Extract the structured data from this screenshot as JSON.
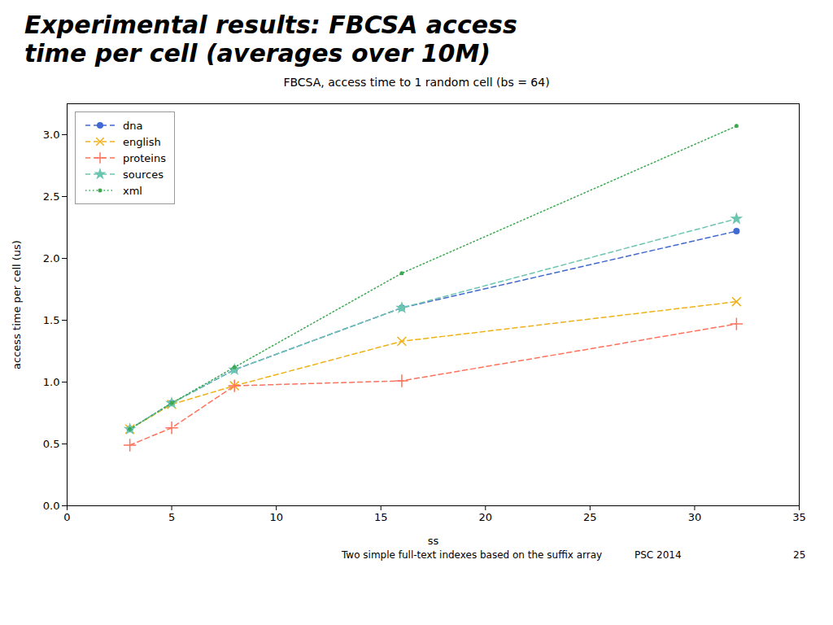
{
  "chart_data": {
    "type": "line",
    "title": "Experimental results: FBCSA access\ntime per cell (averages over 10M)",
    "subtitle": "FBCSA, access time to 1 random cell (bs = 64)",
    "x_label": "ss",
    "y_label": "access time per cell (us)",
    "x": [
      3,
      5,
      8,
      16,
      32
    ],
    "series": [
      {
        "name": "dna",
        "values": [
          0.62,
          0.83,
          1.1,
          1.6,
          2.22
        ],
        "marker": "circle",
        "line_style": "dashed"
      },
      {
        "name": "english",
        "values": [
          0.62,
          0.82,
          0.97,
          1.33,
          1.65
        ],
        "marker": "x",
        "line_style": "dashed"
      },
      {
        "name": "proteins",
        "values": [
          0.49,
          0.63,
          0.97,
          1.01,
          1.47
        ],
        "marker": "plus",
        "line_style": "dashed"
      },
      {
        "name": "sources",
        "values": [
          0.62,
          0.83,
          1.1,
          1.6,
          2.32
        ],
        "marker": "star",
        "line_style": "dashed"
      },
      {
        "name": "xml",
        "values": [
          0.62,
          0.83,
          1.12,
          1.88,
          3.07
        ],
        "marker": "point",
        "line_style": "dotted"
      }
    ],
    "xlim": [
      0,
      35
    ],
    "ylim": [
      0.0,
      3.25
    ],
    "xticks": [
      0,
      5,
      10,
      15,
      20,
      25,
      30,
      35
    ],
    "yticks": [
      {
        "value": 0.0,
        "label": "0.0"
      },
      0.5,
      {
        "value": 1.0,
        "label": "1.0"
      },
      1.5,
      {
        "value": 2.0,
        "label": "2.0"
      },
      2.5,
      {
        "value": 3.0,
        "label": "3.0"
      }
    ],
    "grid": false,
    "legend": "upper left",
    "annotations": [
      "Two simple full-text indexes based on the suffix array",
      "PSC 2014",
      "25"
    ]
  }
}
